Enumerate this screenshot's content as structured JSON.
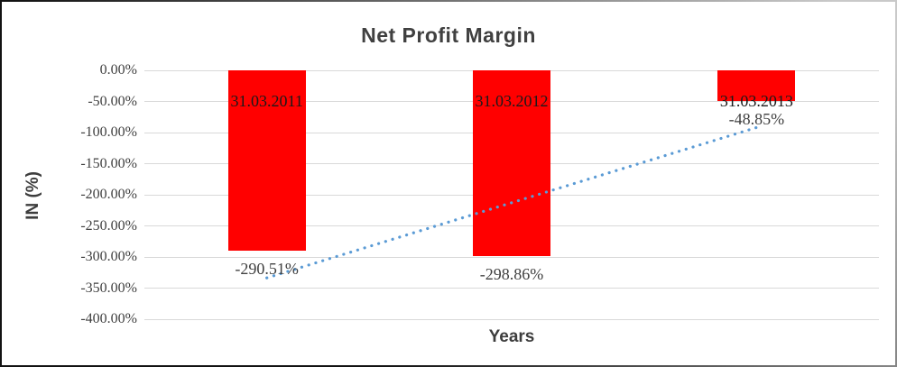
{
  "chart_data": {
    "type": "bar",
    "title": "Net Profit Margin",
    "xlabel": "Years",
    "ylabel": "IN (%)",
    "categories": [
      "31.03.2011",
      "31.03.2012",
      "31.03.2013"
    ],
    "values": [
      -290.51,
      -298.86,
      -48.85
    ],
    "data_labels": [
      "-290.51%",
      "-298.86%",
      "-48.85%"
    ],
    "y_ticks": [
      {
        "label": "0.00%",
        "value": 0
      },
      {
        "label": "-50.00%",
        "value": -50
      },
      {
        "label": "-100.00%",
        "value": -100
      },
      {
        "label": "-150.00%",
        "value": -150
      },
      {
        "label": "-200.00%",
        "value": -200
      },
      {
        "label": "-250.00%",
        "value": -250
      },
      {
        "label": "-300.00%",
        "value": -300
      },
      {
        "label": "-350.00%",
        "value": -350
      },
      {
        "label": "-400.00%",
        "value": -400
      }
    ],
    "ylim": [
      -400,
      0
    ],
    "grid": true,
    "legend": "none",
    "bar_color": "#FF0000",
    "value_label_color": "#404040",
    "category_label_color": "#1a1a1a",
    "gridline_color": "#D9D9D9",
    "trendline": {
      "type": "linear",
      "style": "dotted",
      "color": "#5B9BD5",
      "start": {
        "category_index": 0,
        "value": -333.6
      },
      "end": {
        "category_index": 2,
        "value": -91.9
      }
    }
  }
}
